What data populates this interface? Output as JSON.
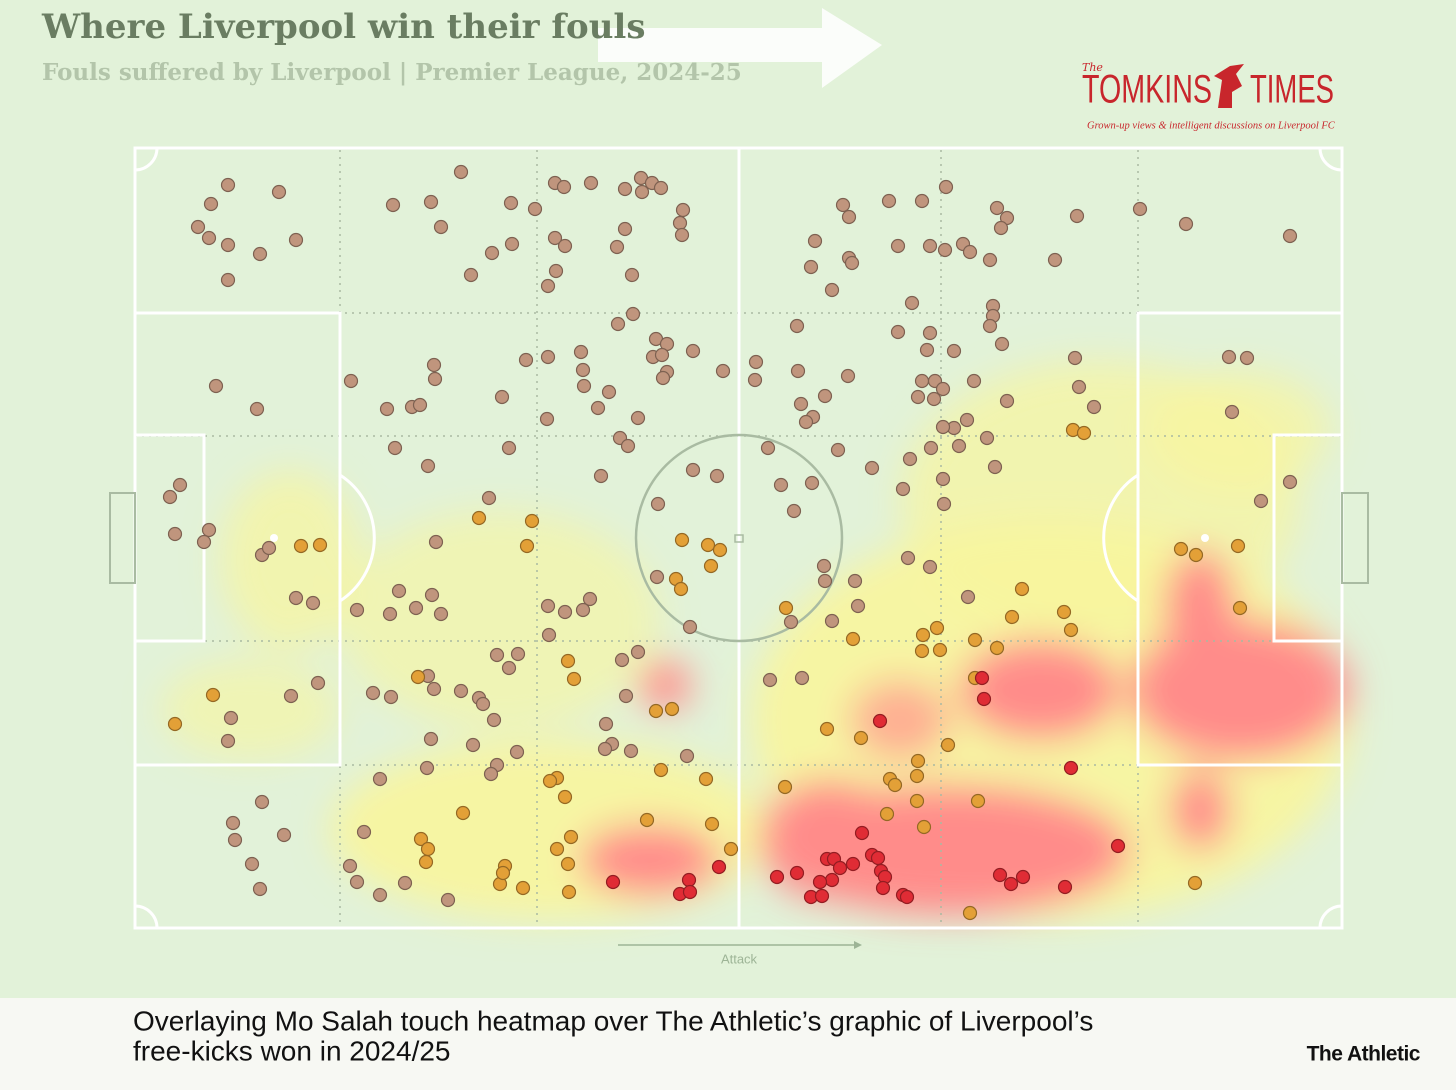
{
  "chart_data": {
    "type": "scatter",
    "title": "Where Liverpool win their fouls",
    "subtitle": "Fouls suffered by Liverpool |  Premier League, 2024-25",
    "logo_small": "The",
    "logo_left": "TOMKINS",
    "logo_right": "TIMES",
    "logo_tagline": "Grown-up views & intelligent discussions on Liverpool FC",
    "x_label": "Attack",
    "caption": [
      "Overlaying Mo Salah touch heatmap over The Athletic’s graphic of Liverpool’s",
      "free-kicks won in 2024/25"
    ],
    "credit": "The Athletic",
    "xlim": [
      0,
      121
    ],
    "ylim": [
      78.3,
      0
    ],
    "series": [
      {
        "color": "#c0957d",
        "x": [
          9.5,
          14.6,
          7.8,
          6.5,
          7.6,
          9.5,
          12.7,
          16.3,
          9.5,
          26,
          29.8,
          30.8,
          32.8,
          37.8,
          40.2,
          42.2,
          43.1,
          45.8,
          49.2,
          50.8,
          51.9,
          52.8,
          50.9,
          55,
          54.7,
          54.9,
          49.2,
          48.4,
          42.2,
          43.2,
          37.9,
          35.9,
          33.8,
          42.3,
          41.5,
          49.9,
          50,
          48.5,
          71,
          71.6,
          75.6,
          78.9,
          81.3,
          86.4,
          87.4,
          86.8,
          94.4,
          100.7,
          105.3,
          115.7,
          68.2,
          67.8,
          71.6,
          71.9,
          69.9,
          76.5,
          79.7,
          81.2,
          83,
          83.7,
          85.7,
          92.2,
          77.9,
          86,
          86,
          85.7,
          86.9,
          66.4,
          76.5,
          79.7,
          79.4,
          82.1,
          62.3,
          62.2,
          66.5,
          71.5,
          69.2,
          66.8,
          68,
          67.3,
          78.9,
          80.2,
          81,
          78.5,
          80.1,
          84.1,
          87.4,
          83.4,
          82.1,
          85.4,
          79.8,
          82.6,
          81,
          70.5,
          73.9,
          77.7,
          86.2,
          77,
          81,
          81.1,
          63.5,
          64.8,
          67.9,
          66.1,
          109.6,
          111.4,
          112.8,
          115.7,
          94.2,
          94.6,
          96.1,
          109.9,
          21.8,
          25.4,
          27.9,
          28.7,
          30.1,
          30.2,
          26.2,
          29.5,
          36.9,
          37.6,
          39.3,
          41.5,
          41.4,
          44.8,
          45,
          45.1,
          46.5,
          47.6,
          50.5,
          48.7,
          49.5,
          52.3,
          53.4,
          52,
          52.9,
          56,
          53.4,
          53,
          59,
          46.8,
          8.3,
          12.4,
          3.7,
          4.7,
          4.2,
          7.6,
          7.1,
          12.9,
          30.3,
          35.6,
          56,
          58.4,
          52.5,
          52.4,
          69.1,
          69.2,
          72.2,
          72.5,
          77.5,
          79.7,
          83.5,
          69.9,
          65.8,
          55.7,
          63.7,
          66.9,
          16.3,
          18,
          22.4,
          25.7,
          28.3,
          29.9,
          30.8,
          26.6,
          41.5,
          41.6,
          43.2,
          45.7,
          45,
          36.4,
          38.5,
          37.6,
          48.9,
          50.5,
          49.3,
          9.8,
          9.5,
          15.8,
          18.5,
          24,
          25.8,
          29.5,
          30.1,
          32.8,
          34.6,
          35,
          36.1,
          29.8,
          34,
          38.4,
          36.4,
          35.8,
          29.4,
          24.7,
          47.3,
          47.9,
          47.2,
          49.8,
          55.4,
          12.9,
          10,
          10.2,
          15.1,
          11.9,
          12.7,
          22.4,
          24.7,
          27.2,
          31.5,
          21.7,
          23.1,
          13.6
        ],
        "values": [
          3.8,
          4.5,
          5.7,
          8,
          9.1,
          9.8,
          10.7,
          9.3,
          13.3,
          5.8,
          5.5,
          8,
          2.5,
          5.6,
          6.2,
          3.6,
          4,
          3.6,
          4.2,
          3.1,
          3.6,
          4.1,
          4.5,
          6.3,
          7.6,
          8.8,
          8.2,
          10,
          9.1,
          9.9,
          9.7,
          10.6,
          12.8,
          12.4,
          13.9,
          12.8,
          16.7,
          17.7,
          5.8,
          7,
          5.4,
          5.4,
          4,
          6.1,
          7.1,
          8.1,
          6.9,
          6.2,
          7.7,
          8.9,
          9.4,
          12,
          11.1,
          11.6,
          14.3,
          9.9,
          9.9,
          10.3,
          9.7,
          10.5,
          11.3,
          11.3,
          15.6,
          15.9,
          16.9,
          17.9,
          19.7,
          17.9,
          18.5,
          18.6,
          20.3,
          20.4,
          21.5,
          23.3,
          22.4,
          22.9,
          24.9,
          25.7,
          27,
          27.5,
          23.4,
          23.4,
          24.2,
          25,
          25.2,
          23.4,
          25.4,
          27.3,
          28.1,
          29.1,
          30.1,
          29.9,
          28,
          30.3,
          32.1,
          31.2,
          32,
          34.2,
          33.2,
          35.7,
          30.1,
          33.8,
          33.6,
          36.4,
          21,
          21.1,
          35.4,
          33.5,
          21.1,
          24,
          26,
          26.5,
          23.4,
          26.2,
          26,
          25.8,
          21.8,
          23.2,
          30.1,
          31.9,
          25,
          30.1,
          21.3,
          21,
          27.2,
          20.5,
          22.3,
          23.9,
          26.1,
          24.5,
          27.1,
          29.1,
          29.9,
          19.2,
          19.7,
          21,
          20.8,
          20.4,
          22.5,
          23.1,
          22.4,
          32.9,
          23.9,
          26.2,
          35,
          33.8,
          38.7,
          38.3,
          39.5,
          40.8,
          39.5,
          35.1,
          32.3,
          32.9,
          35.7,
          43,
          41.9,
          43.4,
          43.4,
          45.9,
          41.1,
          42,
          45,
          47.4,
          47.5,
          48,
          53.3,
          53.1,
          45.1,
          45.6,
          46.3,
          46.7,
          46.1,
          44.8,
          46.7,
          44.4,
          45.9,
          48.8,
          46.5,
          45.2,
          46.3,
          50.8,
          50.7,
          52.1,
          51.3,
          50.5,
          54.9,
          57.1,
          59.4,
          54.9,
          53.6,
          54.6,
          55,
          52.9,
          54.2,
          54.4,
          55.1,
          55.7,
          57.3,
          59.2,
          59.8,
          60.5,
          61.8,
          62.7,
          62.1,
          63.2,
          57.7,
          59.7,
          60.2,
          60.4,
          60.9,
          65.5,
          67.6,
          69.3,
          68.8,
          71.7,
          74.2,
          73.5,
          74.8,
          73.6,
          75.3,
          71.9,
          68.5,
          40.1
        ]
      },
      {
        "color": "#e3a037",
        "x": [
          34.6,
          39.9,
          39.4,
          54.9,
          57.5,
          58.7,
          57.8,
          54.3,
          54.8,
          16.8,
          18.7,
          43.5,
          44.1,
          28.5,
          52.3,
          53.9,
          8,
          4.2,
          65.3,
          72,
          88.9,
          87.9,
          93.1,
          80.4,
          79,
          78.9,
          80.7,
          84.2,
          86.4,
          93.8,
          104.8,
          106.3,
          110.5,
          110.7,
          94,
          95.1,
          69.4,
          72.8,
          78.5,
          78.4,
          75.7,
          76.2,
          78.4,
          75.4,
          79.1,
          84.5,
          81.5,
          84.2,
          65.2,
          52.8,
          57.3,
          57.9,
          59.8,
          51.4,
          42.4,
          41.7,
          43.2,
          43.8,
          42.4,
          43.5,
          43.6,
          39,
          36.7,
          37.2,
          37,
          33,
          28.8,
          29.5,
          29.3,
          106.2,
          83.7
        ],
        "values": [
          37.1,
          37.4,
          39.9,
          39.3,
          39.8,
          40.3,
          41.9,
          43.2,
          44.2,
          39.9,
          39.8,
          51.4,
          53.2,
          53,
          56.4,
          56.2,
          54.8,
          57.7,
          46.1,
          49.2,
          44.2,
          47,
          46.5,
          48.1,
          48.8,
          50.4,
          50.3,
          49.3,
          50.1,
          48.3,
          40.2,
          40.8,
          39.9,
          46.1,
          28.3,
          28.6,
          58.2,
          59.1,
          61.4,
          62.9,
          63.2,
          63.8,
          65.4,
          66.7,
          68,
          65.4,
          59.8,
          53.1,
          64,
          62.3,
          63.2,
          67.7,
          70.2,
          67.3,
          63.1,
          63.4,
          65,
          69,
          70.2,
          71.7,
          74.5,
          74.1,
          73.7,
          71.9,
          72.6,
          66.6,
          69.2,
          70.2,
          71.5,
          73.6,
          76.6
        ]
      },
      {
        "color": "#e02c35",
        "x": [
          84.9,
          85.1,
          74.7,
          93.8,
          98.5,
          72.9,
          73.9,
          74.5,
          72,
          69.4,
          70.1,
          70.7,
          74.8,
          75.2,
          75,
          69.9,
          68.7,
          66.4,
          64.4,
          67.8,
          68.9,
          77,
          77.4,
          86.7,
          87.8,
          89,
          93.2,
          58.6,
          55.6,
          54.7,
          55.7,
          48
        ],
        "values": [
          53.1,
          55.2,
          57.4,
          62.1,
          69.9,
          68.6,
          70.8,
          71.1,
          71.7,
          71.2,
          71.2,
          72.1,
          72.4,
          73,
          74.1,
          73.3,
          73.5,
          72.6,
          73,
          75,
          74.9,
          74.8,
          75,
          72.8,
          73.7,
          73,
          74,
          72,
          73.3,
          74.7,
          74.5,
          73.5
        ]
      }
    ]
  }
}
